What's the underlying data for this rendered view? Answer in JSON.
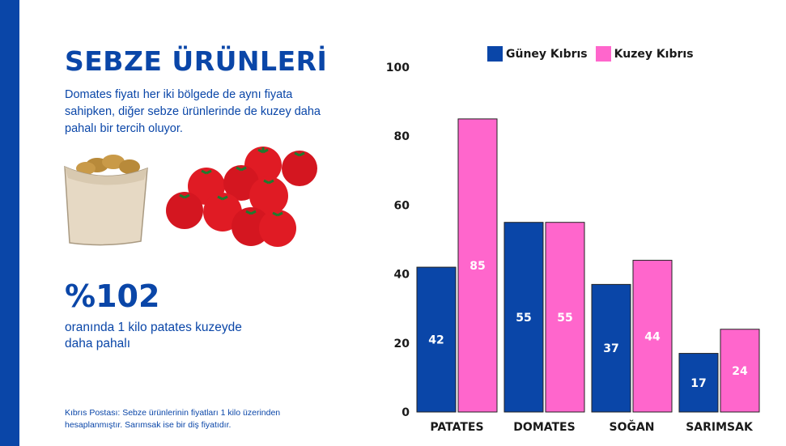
{
  "header": {
    "title": "SEBZE ÜRÜNLERİ",
    "subtitle": "Domates fiyatı her iki bölgede de aynı fiyata sahipken, diğer sebze ürünlerinde de kuzey daha pahalı bir tercih oluyor."
  },
  "stat": {
    "value": "%102",
    "description": "oranında 1 kilo patates kuzeyde daha pahalı"
  },
  "footnote": "Kıbrıs Postası: Sebze ürünlerinin fiyatları 1 kilo üzerinden hesaplanmıştır. Sarımsak ise bir diş fiyatıdır.",
  "illustrations": [
    "potato-sack-icon",
    "tomatoes-icon"
  ],
  "colors": {
    "accent": "#0a46a8",
    "south": "#0a46a8",
    "north": "#ff66cc"
  },
  "chart_data": {
    "type": "bar",
    "categories": [
      "PATATES",
      "DOMATES",
      "SOĞAN",
      "SARIMSAK"
    ],
    "series": [
      {
        "name": "Güney Kıbrıs",
        "values": [
          42,
          55,
          37,
          17
        ],
        "color": "#0a46a8"
      },
      {
        "name": "Kuzey Kıbrıs",
        "values": [
          85,
          55,
          44,
          24
        ],
        "color": "#ff66cc"
      }
    ],
    "yticks": [
      0,
      20,
      40,
      60,
      80,
      100
    ],
    "ylim": [
      0,
      100
    ],
    "legend": "top",
    "grid": false
  }
}
